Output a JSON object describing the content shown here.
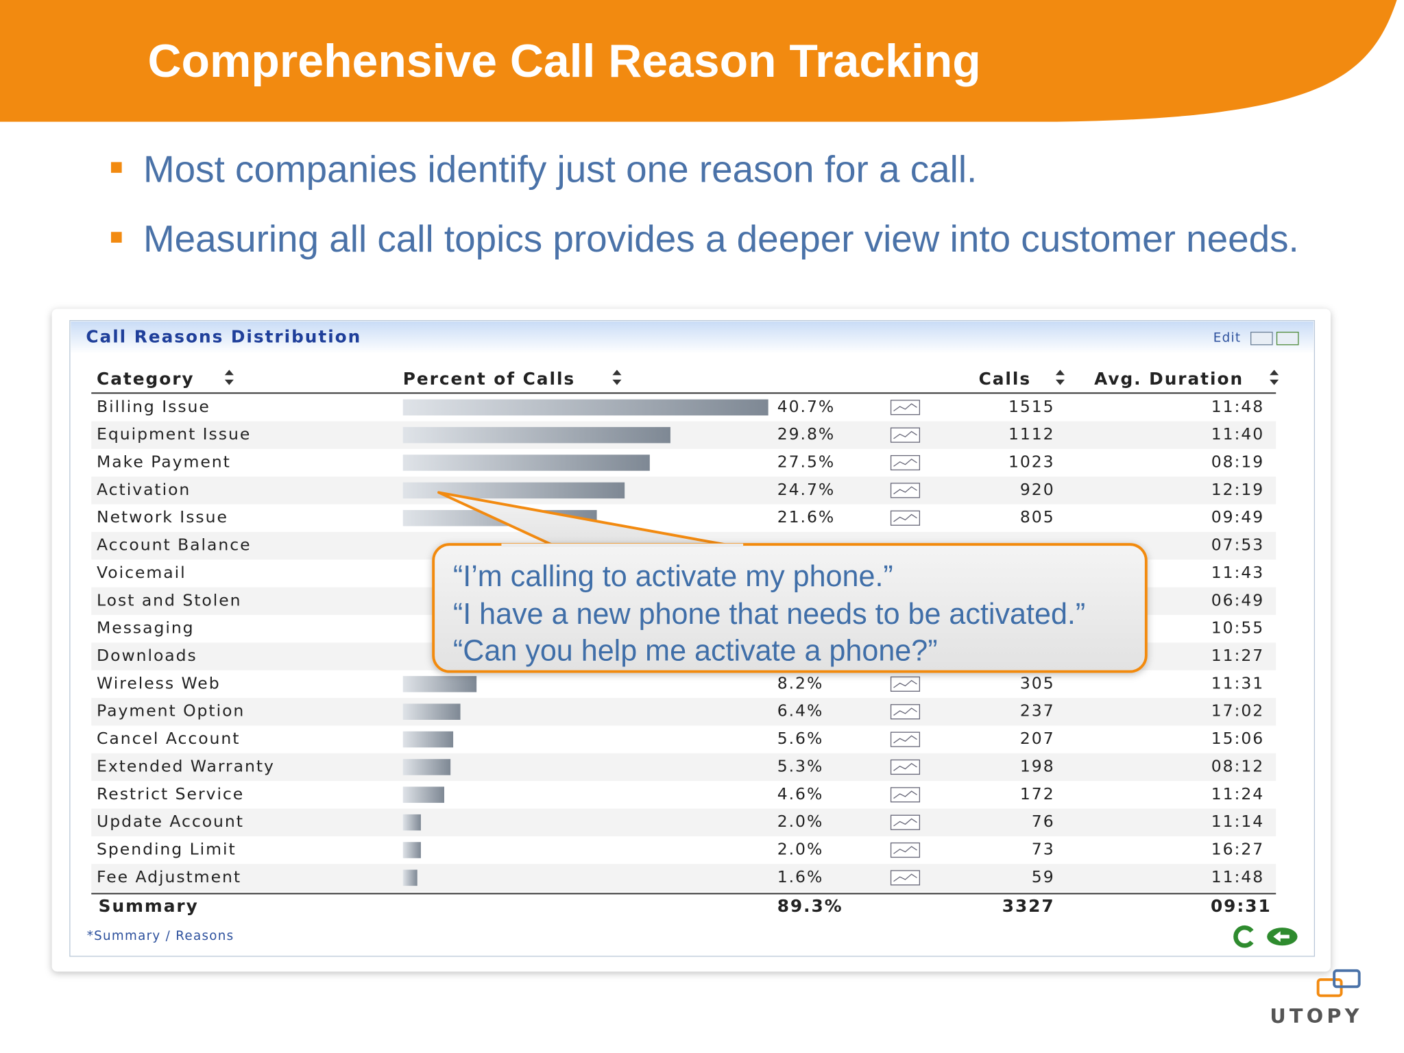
{
  "header": {
    "title": "Comprehensive Call Reason Tracking"
  },
  "bullets": [
    "Most companies identify just one reason for a call.",
    "Measuring all call topics provides a deeper view into customer needs."
  ],
  "widget": {
    "title": "Call Reasons Distribution",
    "edit": "Edit",
    "columns": [
      "Category",
      "Percent of Calls",
      "Calls",
      "Avg. Duration"
    ],
    "rows": [
      {
        "category": "Billing Issue",
        "percent": {
          "value": 40.7,
          "label": "40.7%"
        },
        "calls": 1515,
        "duration": "11:48"
      },
      {
        "category": "Equipment Issue",
        "percent": {
          "value": 29.8,
          "label": "29.8%"
        },
        "calls": 1112,
        "duration": "11:40"
      },
      {
        "category": "Make Payment",
        "percent": {
          "value": 27.5,
          "label": "27.5%"
        },
        "calls": 1023,
        "duration": "08:19"
      },
      {
        "category": "Activation",
        "percent": {
          "value": 24.7,
          "label": "24.7%"
        },
        "calls": 920,
        "duration": "12:19"
      },
      {
        "category": "Network Issue",
        "percent": {
          "value": 21.6,
          "label": "21.6%"
        },
        "calls": 805,
        "duration": "09:49"
      },
      {
        "category": "Account Balance",
        "percent": null,
        "calls": null,
        "duration": "07:53"
      },
      {
        "category": "Voicemail",
        "percent": null,
        "calls": null,
        "duration": "11:43"
      },
      {
        "category": "Lost and Stolen",
        "percent": null,
        "calls": null,
        "duration": "06:49"
      },
      {
        "category": "Messaging",
        "percent": null,
        "calls": null,
        "duration": "10:55"
      },
      {
        "category": "Downloads",
        "percent": null,
        "calls": null,
        "duration": "11:27"
      },
      {
        "category": "Wireless Web",
        "percent": {
          "value": 8.2,
          "label": "8.2%"
        },
        "calls": 305,
        "duration": "11:31"
      },
      {
        "category": "Payment Option",
        "percent": {
          "value": 6.4,
          "label": "6.4%"
        },
        "calls": 237,
        "duration": "17:02"
      },
      {
        "category": "Cancel Account",
        "percent": {
          "value": 5.6,
          "label": "5.6%"
        },
        "calls": 207,
        "duration": "15:06"
      },
      {
        "category": "Extended Warranty",
        "percent": {
          "value": 5.3,
          "label": "5.3%"
        },
        "calls": 198,
        "duration": "08:12"
      },
      {
        "category": "Restrict Service",
        "percent": {
          "value": 4.6,
          "label": "4.6%"
        },
        "calls": 172,
        "duration": "11:24"
      },
      {
        "category": "Update Account",
        "percent": {
          "value": 2,
          "label": "2.0%"
        },
        "calls": 76,
        "duration": "11:14"
      },
      {
        "category": "Spending Limit",
        "percent": {
          "value": 2,
          "label": "2.0%"
        },
        "calls": 73,
        "duration": "16:27"
      },
      {
        "category": "Fee Adjustment",
        "percent": {
          "value": 1.6,
          "label": "1.6%"
        },
        "calls": 59,
        "duration": "11:48"
      }
    ],
    "summary": {
      "label": "Summary",
      "percent": {
        "value": 89.3,
        "label": "89.3%"
      },
      "calls": 3327,
      "duration": "09:31"
    },
    "footer": "*Summary / Reasons"
  },
  "callout": {
    "lines": [
      "“I’m calling to activate my phone.”",
      "“I have a new phone that needs to be activated.”",
      "“Can you help me activate a phone?”"
    ]
  },
  "logo": "UTOPY"
}
